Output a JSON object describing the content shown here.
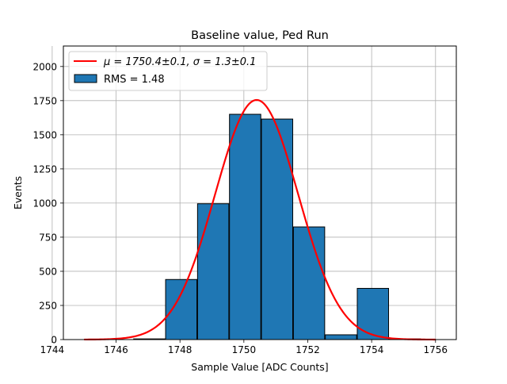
{
  "chart_data": {
    "type": "bar",
    "title": "Baseline value, Ped Run",
    "xlabel": "Sample Value [ADC Counts]",
    "ylabel": "Events",
    "xlim": [
      1744.35,
      1756.65
    ],
    "ylim": [
      0,
      2150
    ],
    "xticks": [
      1744,
      1746,
      1748,
      1750,
      1752,
      1754,
      1756
    ],
    "yticks": [
      0,
      250,
      500,
      750,
      1000,
      1250,
      1500,
      1750,
      2000
    ],
    "grid": true,
    "legend_position": "top-left",
    "bin_edges": [
      1744.55,
      1745.55,
      1746.55,
      1747.55,
      1748.55,
      1749.55,
      1750.55,
      1751.55,
      1752.55,
      1753.55,
      1754.55,
      1755.55,
      1756.55
    ],
    "bin_width": 0.98,
    "counts": [
      0,
      0,
      5,
      440,
      995,
      1650,
      1615,
      825,
      35,
      375,
      5,
      0
    ],
    "fit": {
      "type": "gaussian",
      "mu": 1750.4,
      "sigma": 1.3,
      "peak": 1755,
      "x_range": [
        1745,
        1756
      ]
    },
    "series": [
      {
        "name": "μ = 1750.4±0.1, σ = 1.3±0.1",
        "kind": "fit-line",
        "color": "#ff0000"
      },
      {
        "name": "RMS = 1.48",
        "kind": "histogram",
        "color": "#1f77b4"
      }
    ]
  }
}
